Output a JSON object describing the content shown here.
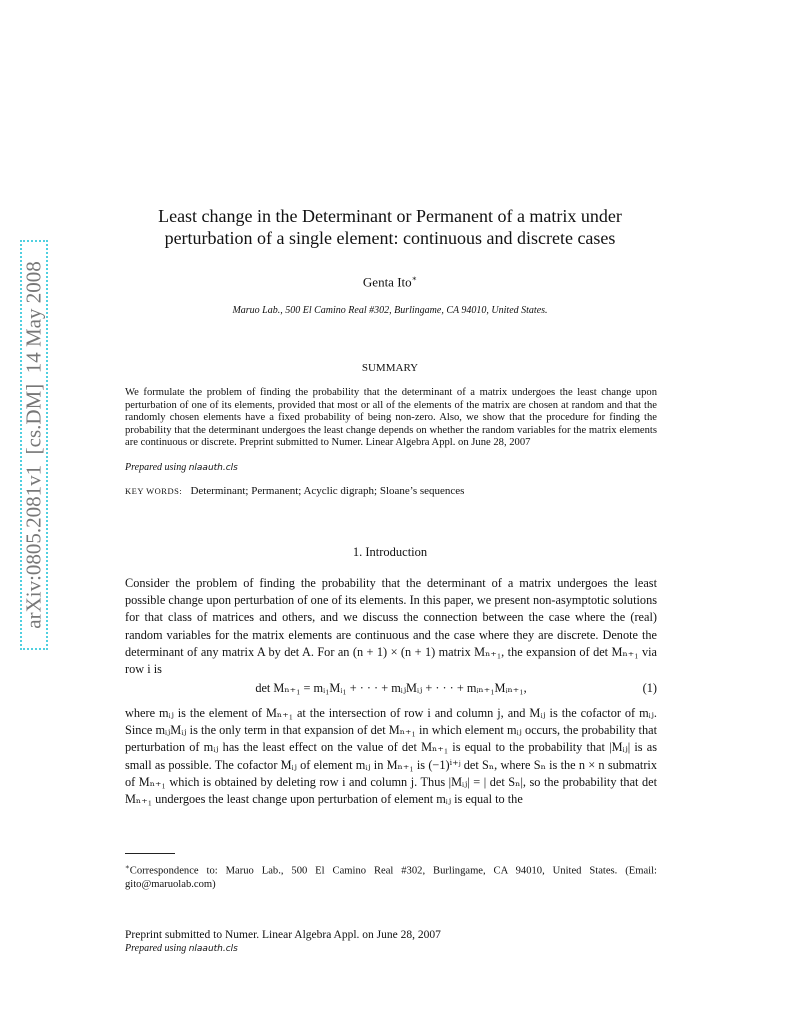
{
  "side_stamp": "arXiv:0805.2081v1  [cs.DM]  14 May 2008",
  "header": {
    "title": [
      "Least change in the Determinant or Permanent of a matrix under",
      "perturbation of a single element: continuous and discrete cases"
    ],
    "author": "Genta Ito",
    "author_mark": "∗",
    "affiliation": "Maruo Lab., 500 El Camino Real #302, Burlingame, CA 94010, United States."
  },
  "summary": {
    "heading": "SUMMARY",
    "text": "We formulate the problem of finding the probability that the determinant of a matrix undergoes the least change upon perturbation of one of its elements, provided that most or all of the elements of the matrix are chosen at random and that the randomly chosen elements have a fixed probability of being non-zero. Also, we show that the procedure for finding the probability that the determinant undergoes the least change depends on whether the random variables for the matrix elements are continuous or discrete.  Preprint submitted to Numer. Linear Algebra Appl. on June 28, 2007",
    "prepared": "Prepared using",
    "cls": "nlaauth.cls"
  },
  "keywords": {
    "label": "KEY WORDS:",
    "text": "Determinant; Permanent; Acyclic digraph; Sloane’s sequences"
  },
  "section": {
    "number": "1.",
    "title": "Introduction",
    "paragraphs": [
      "Consider the problem of finding the probability that the determinant of a matrix undergoes the least possible change upon perturbation of one of its elements. In this paper, we present non-asymptotic solutions for that class of matrices and others, and we discuss the connection between the case where the (real) random variables for the matrix elements are continuous and the case where they are discrete. Denote the determinant of any matrix A by det A. For an (n + 1) × (n + 1) matrix Mₙ₊₁, the expansion of det Mₙ₊₁ via row i is",
      "where mᵢⱼ is the element of Mₙ₊₁ at the intersection of row i and column j, and Mᵢⱼ is the cofactor of mᵢⱼ. Since mᵢⱼMᵢⱼ is the only term in that expansion of det Mₙ₊₁ in which element mᵢⱼ occurs, the probability that perturbation of mᵢⱼ has the least effect on the value of det Mₙ₊₁ is equal to the probability that |Mᵢⱼ| is as small as possible. The cofactor Mᵢⱼ of element mᵢⱼ in Mₙ₊₁ is (−1)ⁱ⁺ʲ det Sₙ, where Sₙ is the n × n submatrix of Mₙ₊₁ which is obtained by deleting row i and column j. Thus |Mᵢⱼ| = | det Sₙ|, so the probability that det Mₙ₊₁ undergoes the least change upon perturbation of element mᵢⱼ is equal to the"
    ],
    "equation": {
      "text": "det Mₙ₊₁ = mᵢ₁Mᵢ₁ + · · · + mᵢⱼMᵢⱼ + · · · + mᵢₙ₊₁Mᵢₙ₊₁,",
      "number": "(1)"
    }
  },
  "footnote": {
    "mark": "∗",
    "text": "Correspondence to: Maruo Lab., 500 El Camino Real #302, Burlingame, CA 94010, United States. (Email: gito@maruolab.com)"
  },
  "footer": {
    "preprint": "Preprint submitted to Numer. Linear Algebra Appl. on June 28, 2007",
    "prepared": "Prepared using",
    "cls": "nlaauth.cls"
  }
}
